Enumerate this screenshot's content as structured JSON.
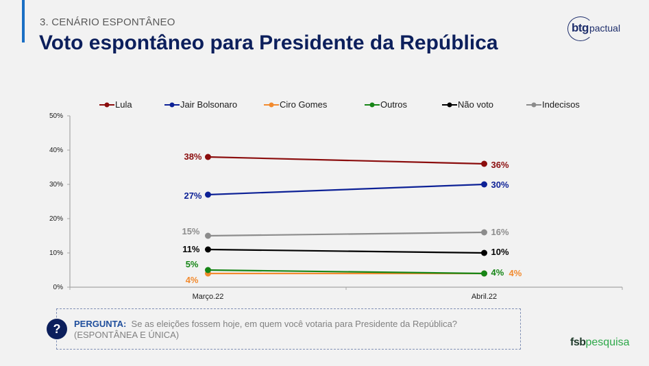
{
  "header": {
    "section": "3. CENÁRIO ESPONTÂNEO",
    "title": "Voto espontâneo para Presidente da República",
    "logo_bold": "btg",
    "logo_light": "pactual"
  },
  "question": {
    "icon": "question-icon",
    "icon_glyph": "?",
    "label": "PERGUNTA:",
    "text": "Se as eleições fossem hoje, em quem você votaria para Presidente da República?",
    "note": "(ESPONTÂNEA E ÚNICA)"
  },
  "footer": {
    "logo_bold": "fsb",
    "logo_light": "pesquisa"
  },
  "chart_data": {
    "type": "line",
    "title": "",
    "xlabel": "",
    "ylabel": "",
    "categories": [
      "Março.22",
      "Abril.22"
    ],
    "ylim": [
      0,
      50
    ],
    "yticks": [
      0,
      10,
      20,
      30,
      40,
      50
    ],
    "ytick_labels": [
      "0%",
      "10%",
      "20%",
      "30%",
      "40%",
      "50%"
    ],
    "grid": false,
    "legend_position": "top",
    "series": [
      {
        "name": "Lula",
        "color": "#8b0d0d",
        "values": [
          38,
          36
        ],
        "labels": [
          "38%",
          "36%"
        ]
      },
      {
        "name": "Jair Bolsonaro",
        "color": "#0d2196",
        "values": [
          27,
          30
        ],
        "labels": [
          "27%",
          "30%"
        ]
      },
      {
        "name": "Ciro Gomes",
        "color": "#f28a2e",
        "values": [
          4,
          4
        ],
        "labels": [
          "4%",
          "4%"
        ]
      },
      {
        "name": "Outros",
        "color": "#168516",
        "values": [
          5,
          4
        ],
        "labels": [
          "5%",
          "4%"
        ]
      },
      {
        "name": "Não voto",
        "color": "#000000",
        "values": [
          11,
          10
        ],
        "labels": [
          "11%",
          "10%"
        ]
      },
      {
        "name": "Indecisos",
        "color": "#8c8c8c",
        "values": [
          15,
          16
        ],
        "labels": [
          "15%",
          "16%"
        ]
      }
    ]
  }
}
